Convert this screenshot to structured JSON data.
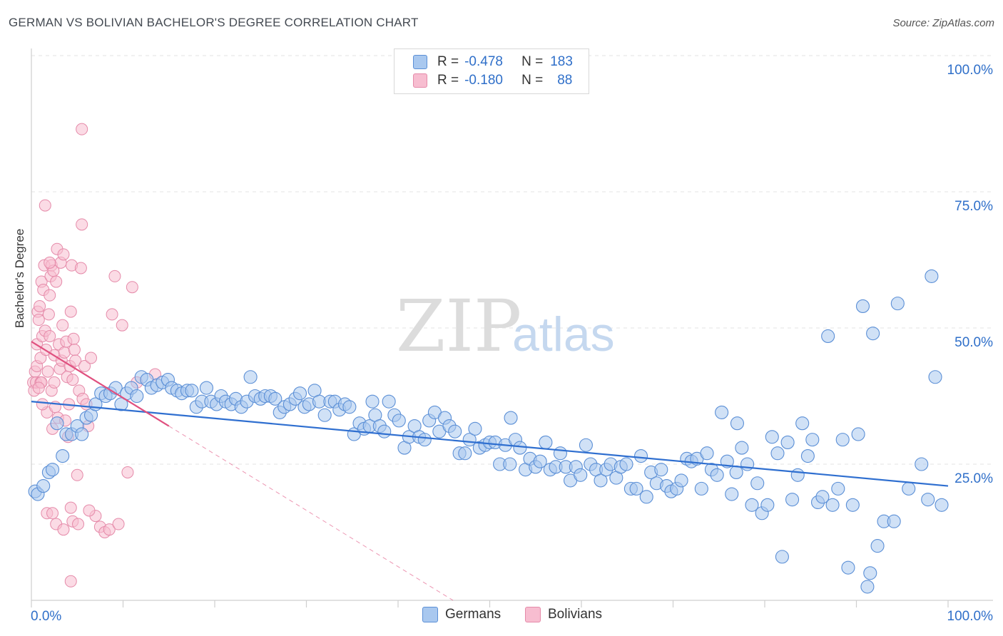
{
  "title": "GERMAN VS BOLIVIAN BACHELOR'S DEGREE CORRELATION CHART",
  "source": "Source: ZipAtlas.com",
  "watermark": {
    "zip": "ZIP",
    "atlas": "atlas"
  },
  "legend": {
    "rows": [
      {
        "r_label": "R =",
        "r_value": "-0.478",
        "n_label": "N =",
        "n_value": "183"
      },
      {
        "r_label": "R =",
        "r_value": "-0.180",
        "n_label": "N =",
        "n_value": "88"
      }
    ]
  },
  "bottom_legend": {
    "germans": "Germans",
    "bolivians": "Bolivians"
  },
  "colors": {
    "german_fill": "#a9c8ef",
    "german_stroke": "#5b8fd6",
    "german_line": "#2f6fd0",
    "bolivian_fill": "#f7bdd0",
    "bolivian_stroke": "#e58aa9",
    "bolivian_line": "#e0507f",
    "axis_label": "#2f6fc9"
  },
  "chart_data": {
    "type": "scatter",
    "title": "GERMAN VS BOLIVIAN BACHELOR'S DEGREE CORRELATION CHART",
    "xlabel": "",
    "ylabel": "Bachelor's Degree",
    "xlim": [
      0,
      100
    ],
    "ylim": [
      0,
      100
    ],
    "x_tick_labels": [
      "0.0%",
      "100.0%"
    ],
    "y_ticks": [
      25,
      50,
      75,
      100
    ],
    "y_tick_labels": [
      "25.0%",
      "50.0%",
      "75.0%",
      "100.0%"
    ],
    "grid": true,
    "series": [
      {
        "name": "Germans",
        "R": -0.478,
        "N": 183,
        "trend": {
          "x": [
            0,
            100
          ],
          "y": [
            36.5,
            21.0
          ]
        },
        "points": [
          [
            0.4,
            20
          ],
          [
            0.7,
            19.5
          ],
          [
            1.3,
            21
          ],
          [
            1.9,
            23.5
          ],
          [
            2.3,
            24
          ],
          [
            2.8,
            32.5
          ],
          [
            3.4,
            26.5
          ],
          [
            3.8,
            30.5
          ],
          [
            4.4,
            30.5
          ],
          [
            5.0,
            32
          ],
          [
            5.5,
            30.5
          ],
          [
            6.0,
            33.5
          ],
          [
            6.5,
            34
          ],
          [
            7.0,
            36
          ],
          [
            7.6,
            38
          ],
          [
            8.1,
            37.5
          ],
          [
            8.6,
            38
          ],
          [
            9.2,
            39
          ],
          [
            9.8,
            36
          ],
          [
            10.4,
            38
          ],
          [
            10.9,
            39
          ],
          [
            11.5,
            37.5
          ],
          [
            12.0,
            41
          ],
          [
            12.6,
            40.5
          ],
          [
            13.1,
            39
          ],
          [
            13.7,
            39.5
          ],
          [
            14.3,
            40
          ],
          [
            14.9,
            40.5
          ],
          [
            15.3,
            39
          ],
          [
            15.9,
            38.5
          ],
          [
            16.4,
            38
          ],
          [
            17.0,
            38.5
          ],
          [
            17.5,
            38.5
          ],
          [
            18.0,
            35.5
          ],
          [
            18.6,
            36.5
          ],
          [
            19.1,
            39
          ],
          [
            19.6,
            36.5
          ],
          [
            20.2,
            36
          ],
          [
            20.7,
            37.5
          ],
          [
            21.2,
            36.5
          ],
          [
            21.8,
            36
          ],
          [
            22.3,
            37
          ],
          [
            22.9,
            35.5
          ],
          [
            23.5,
            36.5
          ],
          [
            23.9,
            41
          ],
          [
            24.4,
            37.5
          ],
          [
            25.0,
            37
          ],
          [
            25.5,
            37.5
          ],
          [
            26.1,
            37.5
          ],
          [
            26.6,
            37
          ],
          [
            27.1,
            34.5
          ],
          [
            27.6,
            35.5
          ],
          [
            28.2,
            36
          ],
          [
            28.8,
            37
          ],
          [
            29.3,
            38
          ],
          [
            29.8,
            35.5
          ],
          [
            30.3,
            36
          ],
          [
            30.9,
            38.5
          ],
          [
            31.4,
            36.5
          ],
          [
            32.0,
            34
          ],
          [
            32.6,
            36.5
          ],
          [
            33.1,
            36.5
          ],
          [
            33.6,
            35
          ],
          [
            34.2,
            36
          ],
          [
            34.7,
            35.5
          ],
          [
            35.2,
            30.5
          ],
          [
            35.8,
            32.5
          ],
          [
            36.3,
            31.5
          ],
          [
            36.9,
            32
          ],
          [
            37.5,
            34
          ],
          [
            38.0,
            32
          ],
          [
            38.5,
            31
          ],
          [
            39.0,
            36.5
          ],
          [
            39.6,
            34
          ],
          [
            40.1,
            33
          ],
          [
            40.7,
            28
          ],
          [
            41.2,
            30
          ],
          [
            41.8,
            32
          ],
          [
            42.3,
            30
          ],
          [
            42.9,
            29.5
          ],
          [
            43.4,
            33
          ],
          [
            44.0,
            34.5
          ],
          [
            44.5,
            31
          ],
          [
            45.1,
            33.5
          ],
          [
            45.6,
            32
          ],
          [
            46.2,
            31
          ],
          [
            46.7,
            27
          ],
          [
            47.3,
            27
          ],
          [
            47.8,
            29.5
          ],
          [
            48.4,
            31.5
          ],
          [
            48.9,
            28
          ],
          [
            49.5,
            28.5
          ],
          [
            50.0,
            29
          ],
          [
            50.6,
            29
          ],
          [
            51.1,
            25
          ],
          [
            51.7,
            28.5
          ],
          [
            52.2,
            25
          ],
          [
            52.8,
            29.5
          ],
          [
            53.3,
            28
          ],
          [
            53.9,
            24
          ],
          [
            54.4,
            26
          ],
          [
            55.0,
            24.5
          ],
          [
            55.5,
            25.5
          ],
          [
            56.1,
            29
          ],
          [
            56.6,
            24
          ],
          [
            57.2,
            24.5
          ],
          [
            57.7,
            27
          ],
          [
            58.3,
            24.5
          ],
          [
            58.8,
            22
          ],
          [
            59.4,
            24.5
          ],
          [
            59.9,
            23
          ],
          [
            60.5,
            28.5
          ],
          [
            61.0,
            25
          ],
          [
            61.6,
            24
          ],
          [
            62.1,
            22
          ],
          [
            62.7,
            24
          ],
          [
            63.2,
            25
          ],
          [
            63.8,
            22.5
          ],
          [
            64.3,
            24.5
          ],
          [
            64.9,
            25
          ],
          [
            65.4,
            20.5
          ],
          [
            66.0,
            20.5
          ],
          [
            66.5,
            26.5
          ],
          [
            67.1,
            19
          ],
          [
            67.6,
            23.5
          ],
          [
            68.2,
            21.5
          ],
          [
            68.7,
            24
          ],
          [
            69.3,
            21
          ],
          [
            69.8,
            20
          ],
          [
            70.4,
            20.5
          ],
          [
            70.9,
            22
          ],
          [
            71.5,
            26
          ],
          [
            72.0,
            25.5
          ],
          [
            72.6,
            26
          ],
          [
            73.1,
            20.5
          ],
          [
            73.7,
            27
          ],
          [
            74.2,
            24
          ],
          [
            74.8,
            23
          ],
          [
            75.3,
            34.5
          ],
          [
            75.9,
            25.5
          ],
          [
            76.4,
            19.5
          ],
          [
            77.0,
            32.5
          ],
          [
            77.5,
            28
          ],
          [
            78.1,
            25
          ],
          [
            78.6,
            17.5
          ],
          [
            79.2,
            21.5
          ],
          [
            79.7,
            16
          ],
          [
            80.3,
            17.5
          ],
          [
            80.8,
            30
          ],
          [
            81.4,
            27
          ],
          [
            81.9,
            8
          ],
          [
            82.5,
            29
          ],
          [
            83.0,
            18.5
          ],
          [
            83.6,
            23
          ],
          [
            84.1,
            32.5
          ],
          [
            84.7,
            26.5
          ],
          [
            85.2,
            29.5
          ],
          [
            85.8,
            18
          ],
          [
            86.3,
            19
          ],
          [
            86.9,
            48.5
          ],
          [
            87.4,
            17.5
          ],
          [
            88.0,
            20.5
          ],
          [
            88.5,
            29.5
          ],
          [
            89.1,
            6
          ],
          [
            89.6,
            17.5
          ],
          [
            90.2,
            30.5
          ],
          [
            90.7,
            54
          ],
          [
            91.2,
            2.5
          ],
          [
            91.5,
            5
          ],
          [
            91.8,
            49
          ],
          [
            92.3,
            10
          ],
          [
            93.0,
            14.5
          ],
          [
            94.1,
            14.5
          ],
          [
            94.5,
            54.5
          ],
          [
            95.7,
            20.5
          ],
          [
            97.1,
            25
          ],
          [
            98.2,
            59.5
          ],
          [
            98.6,
            41
          ],
          [
            99.3,
            17.5
          ],
          [
            97.8,
            18.5
          ],
          [
            76.9,
            23.5
          ],
          [
            52.3,
            33.5
          ],
          [
            37.2,
            36.5
          ]
        ]
      },
      {
        "name": "Bolivians",
        "R": -0.18,
        "N": 88,
        "trend_solid": {
          "x": [
            0,
            15
          ],
          "y": [
            47.5,
            32.0
          ]
        },
        "trend_dashed": {
          "x": [
            15,
            46
          ],
          "y": [
            32.0,
            0
          ]
        },
        "points": [
          [
            0.2,
            40
          ],
          [
            0.3,
            38.5
          ],
          [
            0.4,
            42
          ],
          [
            0.5,
            40
          ],
          [
            0.6,
            43
          ],
          [
            0.6,
            47
          ],
          [
            0.7,
            53
          ],
          [
            0.8,
            51.5
          ],
          [
            0.9,
            54
          ],
          [
            1.0,
            44.5
          ],
          [
            1.0,
            40
          ],
          [
            1.1,
            58.5
          ],
          [
            1.2,
            48.5
          ],
          [
            1.3,
            57
          ],
          [
            1.4,
            61.5
          ],
          [
            1.5,
            49.5
          ],
          [
            1.6,
            46
          ],
          [
            1.7,
            34.5
          ],
          [
            1.8,
            42
          ],
          [
            1.9,
            52.5
          ],
          [
            2.0,
            56
          ],
          [
            2.0,
            48.5
          ],
          [
            2.1,
            59.5
          ],
          [
            2.2,
            61.5
          ],
          [
            2.2,
            38.5
          ],
          [
            2.3,
            31.5
          ],
          [
            2.4,
            60.5
          ],
          [
            2.5,
            45
          ],
          [
            2.6,
            35.5
          ],
          [
            2.7,
            58.5
          ],
          [
            2.8,
            64.5
          ],
          [
            2.9,
            33.5
          ],
          [
            3.0,
            47
          ],
          [
            3.1,
            42.5
          ],
          [
            3.2,
            62
          ],
          [
            3.3,
            44
          ],
          [
            3.4,
            50.5
          ],
          [
            3.5,
            63.5
          ],
          [
            3.6,
            45.5
          ],
          [
            3.7,
            33
          ],
          [
            3.8,
            47.5
          ],
          [
            3.9,
            41
          ],
          [
            4.0,
            30
          ],
          [
            4.1,
            36
          ],
          [
            4.2,
            43
          ],
          [
            4.3,
            53
          ],
          [
            4.4,
            61.5
          ],
          [
            4.5,
            40.5
          ],
          [
            4.6,
            48
          ],
          [
            4.7,
            46
          ],
          [
            4.8,
            44
          ],
          [
            5.0,
            23
          ],
          [
            5.2,
            38.5
          ],
          [
            5.4,
            61
          ],
          [
            5.5,
            69
          ],
          [
            5.6,
            37
          ],
          [
            5.8,
            43
          ],
          [
            6.0,
            36
          ],
          [
            6.2,
            32
          ],
          [
            6.5,
            44.5
          ],
          [
            7.0,
            15.5
          ],
          [
            7.5,
            13.5
          ],
          [
            8.0,
            12.5
          ],
          [
            8.5,
            13
          ],
          [
            8.8,
            52.5
          ],
          [
            9.1,
            59.5
          ],
          [
            9.5,
            14
          ],
          [
            9.9,
            50.5
          ],
          [
            10.5,
            23.5
          ],
          [
            11.0,
            57.5
          ],
          [
            11.5,
            40
          ],
          [
            13.5,
            41.5
          ],
          [
            1.5,
            72.5
          ],
          [
            5.5,
            86.5
          ],
          [
            2.0,
            62
          ],
          [
            1.7,
            16
          ],
          [
            2.7,
            14
          ],
          [
            3.5,
            13
          ],
          [
            4.3,
            17
          ],
          [
            4.5,
            14.5
          ],
          [
            4.3,
            3.5
          ],
          [
            5.1,
            14
          ],
          [
            6.3,
            16.5
          ],
          [
            2.3,
            16
          ],
          [
            1.1,
            40
          ],
          [
            0.8,
            39
          ],
          [
            1.2,
            36
          ],
          [
            2.5,
            40
          ]
        ]
      }
    ]
  }
}
